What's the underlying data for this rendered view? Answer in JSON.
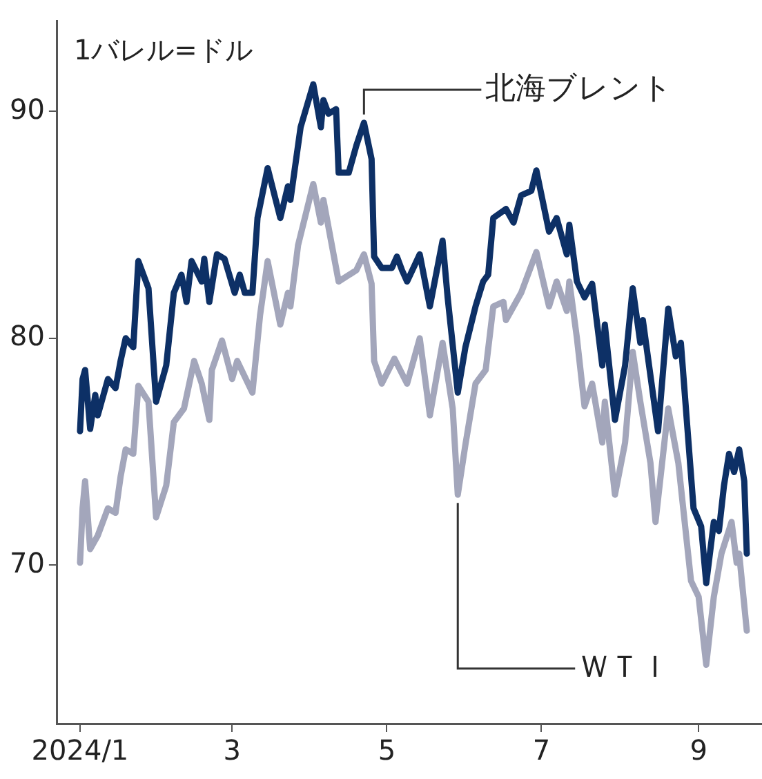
{
  "chart_data": {
    "type": "line",
    "ylabel": "1バレル=ドル",
    "xlim": [
      "2023-12-23",
      "2024-09-26"
    ],
    "xticks": [
      {
        "value": "2024-01-01",
        "label": "2024/1"
      },
      {
        "value": "2024-03-01",
        "label": "3"
      },
      {
        "value": "2024-05-01",
        "label": "5"
      },
      {
        "value": "2024-07-01",
        "label": "7"
      },
      {
        "value": "2024-09-01",
        "label": "9"
      }
    ],
    "ylim": [
      63,
      94
    ],
    "yticks": [
      70,
      80,
      90
    ],
    "grid": false,
    "legend": false,
    "marker": "none",
    "line_style": "solid",
    "series": [
      {
        "name": "北海ブレント",
        "color": "#0d3066",
        "x": [
          "2024-01-01",
          "2024-01-02",
          "2024-01-03",
          "2024-01-05",
          "2024-01-07",
          "2024-01-08",
          "2024-01-12",
          "2024-01-15",
          "2024-01-17",
          "2024-01-19",
          "2024-01-22",
          "2024-01-24",
          "2024-01-28",
          "2024-01-31",
          "2024-02-04",
          "2024-02-07",
          "2024-02-10",
          "2024-02-12",
          "2024-02-14",
          "2024-02-18",
          "2024-02-19",
          "2024-02-21",
          "2024-02-24",
          "2024-02-27",
          "2024-03-02",
          "2024-03-04",
          "2024-03-06",
          "2024-03-09",
          "2024-03-11",
          "2024-03-15",
          "2024-03-20",
          "2024-03-23",
          "2024-03-24",
          "2024-03-28",
          "2024-04-02",
          "2024-04-05",
          "2024-04-06",
          "2024-04-08",
          "2024-04-11",
          "2024-04-12",
          "2024-04-16",
          "2024-04-19",
          "2024-04-22",
          "2024-04-25",
          "2024-04-26",
          "2024-04-29",
          "2024-05-03",
          "2024-05-05",
          "2024-05-07",
          "2024-05-09",
          "2024-05-14",
          "2024-05-18",
          "2024-05-23",
          "2024-05-25",
          "2024-05-29",
          "2024-06-01",
          "2024-06-05",
          "2024-06-08",
          "2024-06-10",
          "2024-06-12",
          "2024-06-17",
          "2024-06-20",
          "2024-06-23",
          "2024-06-27",
          "2024-06-29",
          "2024-07-04",
          "2024-07-07",
          "2024-07-11",
          "2024-07-12",
          "2024-07-15",
          "2024-07-18",
          "2024-07-21",
          "2024-07-25",
          "2024-07-26",
          "2024-07-30",
          "2024-08-03",
          "2024-08-06",
          "2024-08-09",
          "2024-08-10",
          "2024-08-16",
          "2024-08-20",
          "2024-08-23",
          "2024-08-25",
          "2024-08-30",
          "2024-09-02",
          "2024-09-04",
          "2024-09-07",
          "2024-09-09",
          "2024-09-11",
          "2024-09-13",
          "2024-09-15",
          "2024-09-17",
          "2024-09-19",
          "2024-09-20"
        ],
        "values": [
          75.9,
          78.2,
          78.6,
          76.0,
          77.5,
          76.6,
          78.2,
          77.8,
          79.0,
          80.0,
          79.6,
          83.4,
          82.2,
          77.2,
          78.8,
          82.0,
          82.8,
          81.6,
          83.4,
          82.5,
          83.5,
          81.6,
          83.7,
          83.5,
          82.0,
          82.8,
          82.0,
          82.0,
          85.3,
          87.5,
          85.3,
          86.7,
          86.1,
          89.3,
          91.2,
          89.3,
          90.5,
          89.9,
          90.1,
          87.3,
          87.3,
          88.5,
          89.5,
          87.9,
          83.6,
          83.1,
          83.1,
          83.6,
          83.0,
          82.5,
          83.7,
          81.4,
          84.3,
          81.8,
          77.6,
          79.6,
          81.4,
          82.5,
          82.8,
          85.3,
          85.7,
          85.1,
          86.3,
          86.5,
          87.4,
          84.7,
          85.3,
          83.7,
          85.0,
          82.5,
          81.8,
          82.4,
          78.8,
          80.6,
          76.4,
          78.8,
          82.2,
          79.8,
          80.8,
          75.9,
          81.3,
          79.2,
          79.8,
          72.5,
          71.7,
          69.2,
          71.9,
          71.5,
          73.5,
          74.9,
          74.1,
          75.1,
          73.7,
          70.5
        ]
      },
      {
        "name": "ＷＴＩ",
        "color": "#a3a6bb",
        "x": [
          "2024-01-01",
          "2024-01-02",
          "2024-01-03",
          "2024-01-05",
          "2024-01-08",
          "2024-01-12",
          "2024-01-15",
          "2024-01-17",
          "2024-01-19",
          "2024-01-22",
          "2024-01-24",
          "2024-01-28",
          "2024-01-31",
          "2024-02-04",
          "2024-02-07",
          "2024-02-11",
          "2024-02-15",
          "2024-02-18",
          "2024-02-21",
          "2024-02-22",
          "2024-02-26",
          "2024-03-01",
          "2024-03-03",
          "2024-03-09",
          "2024-03-12",
          "2024-03-15",
          "2024-03-20",
          "2024-03-23",
          "2024-03-24",
          "2024-03-27",
          "2024-04-02",
          "2024-04-05",
          "2024-04-06",
          "2024-04-08",
          "2024-04-12",
          "2024-04-19",
          "2024-04-22",
          "2024-04-25",
          "2024-04-26",
          "2024-04-29",
          "2024-05-04",
          "2024-05-09",
          "2024-05-14",
          "2024-05-18",
          "2024-05-23",
          "2024-05-27",
          "2024-05-29",
          "2024-06-01",
          "2024-06-05",
          "2024-06-09",
          "2024-06-12",
          "2024-06-16",
          "2024-06-17",
          "2024-06-20",
          "2024-06-23",
          "2024-06-29",
          "2024-07-04",
          "2024-07-07",
          "2024-07-11",
          "2024-07-12",
          "2024-07-15",
          "2024-07-18",
          "2024-07-21",
          "2024-07-25",
          "2024-07-26",
          "2024-07-30",
          "2024-08-03",
          "2024-08-06",
          "2024-08-09",
          "2024-08-13",
          "2024-08-15",
          "2024-08-20",
          "2024-08-24",
          "2024-08-29",
          "2024-09-01",
          "2024-09-04",
          "2024-09-07",
          "2024-09-10",
          "2024-09-14",
          "2024-09-16",
          "2024-09-17",
          "2024-09-20"
        ],
        "values": [
          70.1,
          72.5,
          73.7,
          70.7,
          71.3,
          72.5,
          72.3,
          73.9,
          75.1,
          74.9,
          77.9,
          77.2,
          72.1,
          73.5,
          76.3,
          76.9,
          79.0,
          78.0,
          76.4,
          78.6,
          79.9,
          78.2,
          79.0,
          77.6,
          81.0,
          83.4,
          80.6,
          82.0,
          81.4,
          84.1,
          86.8,
          85.1,
          86.1,
          84.9,
          82.5,
          83.0,
          83.7,
          82.4,
          79.0,
          78.0,
          79.1,
          78.0,
          80.0,
          76.6,
          79.8,
          76.9,
          73.1,
          75.3,
          78.0,
          78.6,
          81.4,
          81.6,
          80.8,
          81.4,
          82.0,
          83.8,
          81.4,
          82.5,
          81.2,
          82.5,
          80.0,
          77.0,
          78.0,
          75.4,
          77.2,
          73.1,
          75.4,
          79.4,
          77.2,
          74.5,
          71.9,
          76.9,
          74.5,
          69.3,
          68.6,
          65.6,
          68.6,
          70.5,
          71.9,
          70.1,
          70.5,
          67.1
        ]
      }
    ]
  }
}
